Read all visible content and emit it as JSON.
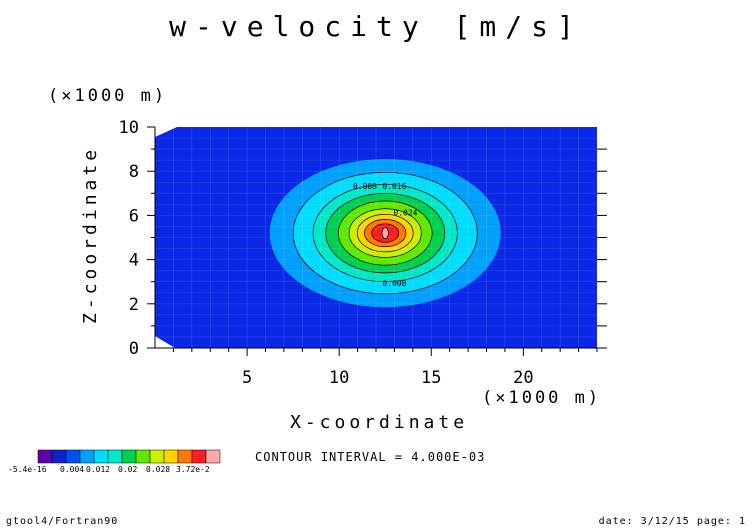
{
  "chart_data": {
    "type": "heatmap",
    "title": "w-velocity [m/s]",
    "xlabel": "X-coordinate",
    "ylabel": "Z-coordinate",
    "x_scale_note": "(×1000 m)",
    "z_scale_note": "(×1000 m)",
    "xlim": [
      0,
      24
    ],
    "ylim": [
      0,
      10
    ],
    "x_ticks": [
      5,
      10,
      15,
      20
    ],
    "y_ticks": [
      0,
      2,
      4,
      6,
      8,
      10
    ],
    "center": {
      "x": 12.5,
      "z": 5.2
    },
    "contour_interval": "CONTOUR INTERVAL = 4.000E-03",
    "contour_labels": [
      {
        "text": "0.008",
        "x": 11.4,
        "z": 7.2
      },
      {
        "text": "0.016",
        "x": 13.0,
        "z": 7.2
      },
      {
        "text": "0.024",
        "x": 13.6,
        "z": 6.0
      },
      {
        "text": "0.008",
        "x": 13.0,
        "z": 2.8
      }
    ],
    "levels": [
      {
        "rx": 6.4,
        "rz": 3.35,
        "color": "#00a0ff"
      },
      {
        "rx": 5.1,
        "rz": 2.75,
        "color": "#00dcff"
      },
      {
        "rx": 4.0,
        "rz": 2.2,
        "color": "#00e8c8"
      },
      {
        "rx": 3.3,
        "rz": 1.8,
        "color": "#00d050"
      },
      {
        "rx": 2.6,
        "rz": 1.45,
        "color": "#60e800"
      },
      {
        "rx": 2.0,
        "rz": 1.1,
        "color": "#c8f000"
      },
      {
        "rx": 1.55,
        "rz": 0.85,
        "color": "#ffd200"
      },
      {
        "rx": 1.15,
        "rz": 0.62,
        "color": "#ff7800"
      },
      {
        "rx": 0.75,
        "rz": 0.42,
        "color": "#ff1e1e"
      },
      {
        "rx": 0.18,
        "rz": 0.25,
        "color": "#ffaaaa"
      }
    ],
    "background_color": "#0a28e6",
    "colorbar": {
      "colors": [
        "#6000a8",
        "#1020c8",
        "#0050f0",
        "#00a0ff",
        "#00dcff",
        "#00e8c8",
        "#00d050",
        "#60e800",
        "#c8f000",
        "#ffd200",
        "#ff7800",
        "#ff1e1e",
        "#ffaaaa"
      ],
      "labels": [
        "-5.4e-16",
        "0.004",
        "0.012",
        "0.02",
        "0.028",
        "3.72e-2"
      ]
    }
  },
  "footer": {
    "left": "gtool4/Fortran90",
    "right": "date: 3/12/15 page: 1"
  }
}
